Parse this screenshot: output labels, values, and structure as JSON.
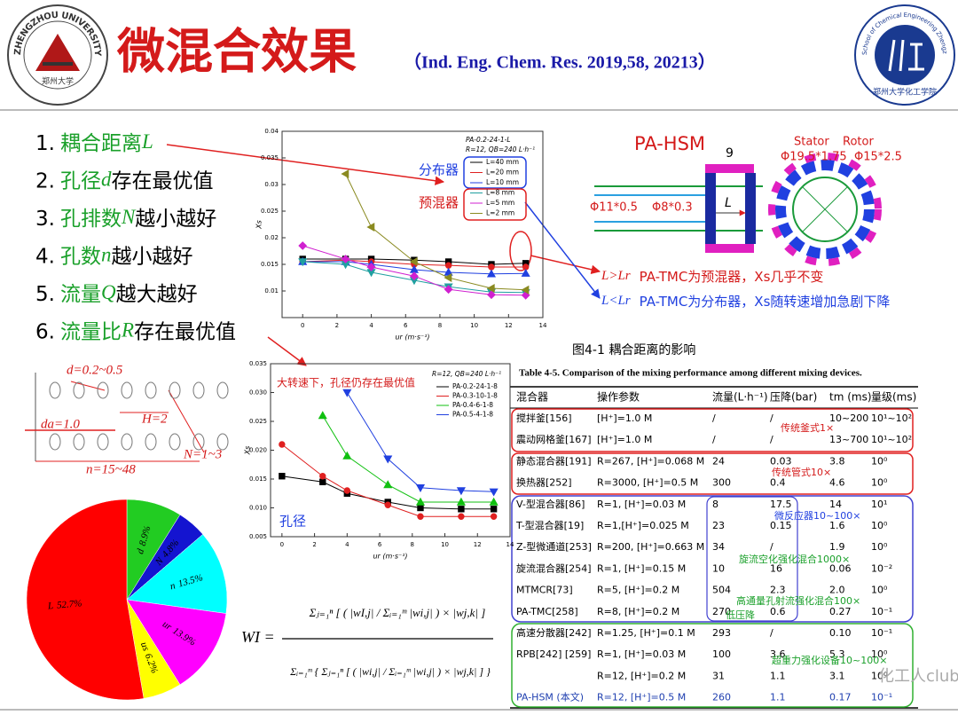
{
  "header": {
    "title": "微混合效果",
    "citation": "（Ind. Eng. Chem. Res. 2019,58, 20213）",
    "logo_left": {
      "ring": "ZHENGZHOU UNIVERSITY",
      "seal": "郑州大学"
    },
    "logo_right": {
      "ring": "School of Chemical Engineering Zhengzhou University",
      "seal": "郑州大学化工学院",
      "year": "1958"
    }
  },
  "factors": [
    {
      "prefix": "1.",
      "term": "耦合距离",
      "var": "L"
    },
    {
      "prefix": "2.",
      "term": "孔径",
      "var": "d",
      "rest": "存在最优值"
    },
    {
      "prefix": "3.",
      "term": "孔排数",
      "var": "N",
      "rest": "越小越好"
    },
    {
      "prefix": "4.",
      "term": "孔数",
      "var": "n",
      "rest": "越小越好"
    },
    {
      "prefix": "5.",
      "term": "流量",
      "var": "Q",
      "rest": "越大越好"
    },
    {
      "prefix": "6.",
      "term": "流量比",
      "var": "R",
      "rest": "存在最优值"
    }
  ],
  "chart_data": [
    {
      "type": "line",
      "legend_title": [
        "PA-0.2-24-1-L",
        "R=12, QB=240 L·h⁻¹"
      ],
      "x": [
        0,
        2.5,
        4,
        6.5,
        8.5,
        11,
        13
      ],
      "xlim": [
        -1.2,
        14
      ],
      "xticks": [
        0,
        2,
        4,
        6,
        8,
        10,
        12,
        14
      ],
      "ylim": [
        0.005,
        0.04
      ],
      "yticks": [
        0.01,
        0.015,
        0.02,
        0.025,
        0.03,
        0.035,
        0.04
      ],
      "xlabel": "ur (m·s⁻¹)",
      "ylabel": "Xs",
      "annotations": [
        "分布器",
        "预混器"
      ],
      "series": [
        {
          "name": "L=40 mm",
          "color": "#000000",
          "marker": "square",
          "values": [
            0.016,
            0.016,
            0.016,
            0.0158,
            0.0155,
            0.015,
            0.0152
          ]
        },
        {
          "name": "L=20 mm",
          "color": "#e02020",
          "marker": "circle",
          "values": [
            0.0155,
            0.0158,
            0.0155,
            0.015,
            0.0148,
            0.0145,
            0.0145
          ]
        },
        {
          "name": "L=10 mm",
          "color": "#2040e0",
          "marker": "triangle-up",
          "values": [
            0.0155,
            0.0155,
            0.015,
            0.014,
            0.0135,
            0.0132,
            0.0133
          ]
        },
        {
          "name": "L=8 mm",
          "color": "#20a0a0",
          "marker": "triangle-down",
          "values": [
            0.0155,
            0.015,
            0.0135,
            0.012,
            0.0108,
            0.0098,
            0.0097
          ]
        },
        {
          "name": "L=5 mm",
          "color": "#d020d0",
          "marker": "diamond",
          "values": [
            0.0185,
            0.016,
            0.0145,
            0.0128,
            0.0103,
            0.0093,
            0.0092
          ]
        },
        {
          "name": "L=2 mm",
          "color": "#8a8a20",
          "marker": "triangle-left",
          "values": [
            null,
            0.032,
            0.022,
            0.0155,
            0.0125,
            0.0105,
            0.0102
          ]
        }
      ]
    },
    {
      "type": "line",
      "legend_title": [
        "R=12, QB=240 L·h⁻¹"
      ],
      "x": [
        0,
        2.5,
        4,
        6.5,
        8.5,
        11,
        13
      ],
      "xlim": [
        -0.7,
        14
      ],
      "xticks": [
        0,
        2,
        4,
        6,
        8,
        10,
        12,
        14
      ],
      "ylim": [
        0.005,
        0.035
      ],
      "yticks": [
        0.005,
        {
          "value": 0.01,
          "label": "0.010"
        },
        0.015,
        {
          "value": 0.02,
          "label": "0.020"
        },
        0.025,
        {
          "value": 0.03,
          "label": "0.030"
        },
        0.035
      ],
      "xlabel": "ur (m·s⁻¹)",
      "ylabel": "Xs",
      "annotations": [
        "大转速下，孔径仍存在最优值",
        "孔径"
      ],
      "series": [
        {
          "name": "PA-0.2-24-1-8",
          "color": "#000000",
          "marker": "square",
          "values": [
            0.0155,
            0.0145,
            0.0125,
            0.011,
            0.01,
            0.0098,
            0.0098
          ]
        },
        {
          "name": "PA-0.3-10-1-8",
          "color": "#e02020",
          "marker": "circle",
          "values": [
            0.021,
            0.0155,
            0.013,
            0.0105,
            0.0085,
            0.0085,
            0.0085
          ]
        },
        {
          "name": "PA-0.4-6-1-8",
          "color": "#10c010",
          "marker": "triangle-up",
          "values": [
            null,
            0.026,
            0.019,
            0.014,
            0.011,
            0.011,
            0.011
          ]
        },
        {
          "name": "PA-0.5-4-1-8",
          "color": "#2040e0",
          "marker": "triangle-down",
          "values": [
            null,
            null,
            0.03,
            0.0185,
            0.0135,
            0.013,
            0.0128
          ]
        }
      ]
    },
    {
      "type": "pie",
      "categories": [
        "d",
        "N",
        "n",
        "ur",
        "us",
        "L"
      ],
      "values": [
        8.9,
        4.8,
        13.5,
        13.9,
        6.2,
        52.7
      ],
      "value_labels": [
        "8.9%",
        "4.8%",
        "13.5%",
        "13.9%",
        "6.2%",
        "52.7%"
      ],
      "colors": [
        "#22cc22",
        "#1414d0",
        "#00ffff",
        "#ff00ff",
        "#ffff00",
        "#ff0000"
      ]
    }
  ],
  "device": {
    "name": "PA-HSM",
    "gap": "9",
    "outer_tube": "Φ11*0.5",
    "inner_tube": "Φ8*0.3",
    "distance": "L",
    "stator": "Stator",
    "stator_size": "Φ19.5*1.75",
    "rotor": "Rotor",
    "rotor_size": "Φ15*2.5"
  },
  "conclusions": [
    {
      "cond": "L>Lr",
      "text": "PA-TMC为预混器，Xs几乎不变"
    },
    {
      "cond": "L<Lr",
      "text": "PA-TMC为分布器，Xs随转速增加急剧下降"
    }
  ],
  "figure_caption": "图4-1 耦合距离的影响",
  "hole_diagram": {
    "d": "d=0.2~0.5",
    "da": "da=1.0",
    "H": "H=2",
    "N": "N=1~3",
    "n": "n=15~48"
  },
  "formula": {
    "lhs": "WI =",
    "numerator": "Σⱼ₌₁ⁿ [ ( |wI,j| / Σᵢ₌₁ᵐ |wi,j| ) × |wj,k| ]",
    "denominator": "Σᵢ₌₁ᵐ { Σⱼ₌₁ⁿ [ ( |wi,j| / Σᵢ₌₁ᵐ |wi,j| ) × |wj,k| ] }"
  },
  "table": {
    "title": "Table 4-5. Comparison of the mixing performance among different mixing devices.",
    "headers": [
      "混合器",
      "操作参数",
      "流量(L·h⁻¹)",
      "压降(bar)",
      "tm (ms)",
      "量级(ms)"
    ],
    "rows": [
      [
        "搅拌釜[156]",
        "[H⁺]=1.0 M",
        "/",
        "/",
        "10~200",
        "10¹~10²"
      ],
      [
        "震动网格釜[167]",
        "[H⁺]=1.0 M",
        "/",
        "/",
        "13~700",
        "10¹~10²"
      ],
      [
        "静态混合器[191]",
        "R=267, [H⁺]=0.068 M",
        "24",
        "0.03",
        "3.8",
        "10⁰"
      ],
      [
        "换热器[252]",
        "R=3000, [H⁺]=0.5 M",
        "300",
        "0.4",
        "4.6",
        "10⁰"
      ],
      [
        "V-型混合器[86]",
        "R=1, [H⁺]=0.03 M",
        "8",
        "17.5",
        "14",
        "10¹"
      ],
      [
        "T-型混合器[19]",
        "R=1,[H⁺]=0.025 M",
        "23",
        "0.15",
        "1.6",
        "10⁰"
      ],
      [
        "Z-型微通道[253]",
        "R=200, [H⁺]=0.663 M",
        "34",
        "/",
        "1.9",
        "10⁰"
      ],
      [
        "旋流混合器[254]",
        "R=1, [H⁺]=0.15 M",
        "10",
        "16",
        "0.06",
        "10⁻²"
      ],
      [
        "MTMCR[73]",
        "R=5, [H⁺]=0.2 M",
        "504",
        "2.3",
        "2.0",
        "10⁰"
      ],
      [
        "PA-TMC[258]",
        "R=8, [H⁺]=0.2 M",
        "270",
        "0.6",
        "0.27",
        "10⁻¹"
      ],
      [
        "高速分散器[242]",
        "R=1.25, [H⁺]=0.1 M",
        "293",
        "/",
        "0.10",
        "10⁻¹"
      ],
      [
        "RPB[242] [259]",
        "R=1, [H⁺]=0.03 M",
        "100",
        "3.6",
        "5.3",
        "10⁰"
      ],
      [
        null,
        "R=12, [H⁺]=0.2 M",
        "31",
        "1.1",
        "3.1",
        "10⁰"
      ],
      [
        "PA-HSM (本文)",
        "R=12, [H⁺]=0.5 M",
        "260",
        "1.1",
        "0.17",
        "10⁻¹"
      ]
    ],
    "annotations": [
      "传统釜式1×",
      "传统管式10×",
      "微反应器10~100×",
      "旋流空化强化混合1000×",
      "高通量孔射流强化混合100×",
      "低压降",
      "超重力强化设备10~100×"
    ]
  },
  "watermark": "化工人club"
}
